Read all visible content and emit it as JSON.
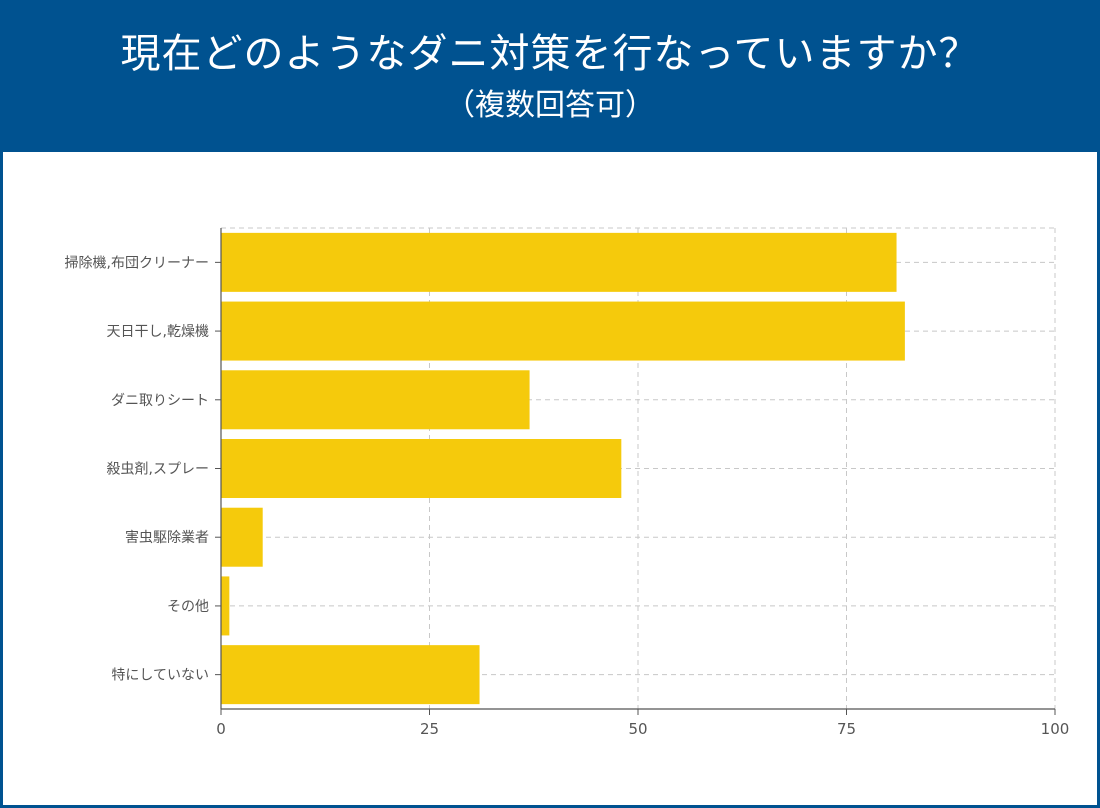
{
  "header": {
    "title": "現在どのようなダニ対策を行なっていますか？",
    "subtitle": "（複数回答可）"
  },
  "colors": {
    "header_bg": "#005290",
    "bar": "#f5ca0c",
    "grid": "#c8c8c8",
    "axis": "#555555"
  },
  "chart_data": {
    "type": "bar",
    "orientation": "horizontal",
    "categories": [
      "掃除機,布団クリーナー",
      "天日干し,乾燥機",
      "ダニ取りシート",
      "殺虫剤,スプレー",
      "害虫駆除業者",
      "その他",
      "特にしていない"
    ],
    "values": [
      81,
      82,
      37,
      48,
      5,
      1,
      31
    ],
    "xlim": [
      0,
      100
    ],
    "xticks": [
      0,
      25,
      50,
      75,
      100
    ],
    "grid": true,
    "grid_style": "dashed",
    "title": "",
    "xlabel": "",
    "ylabel": ""
  }
}
